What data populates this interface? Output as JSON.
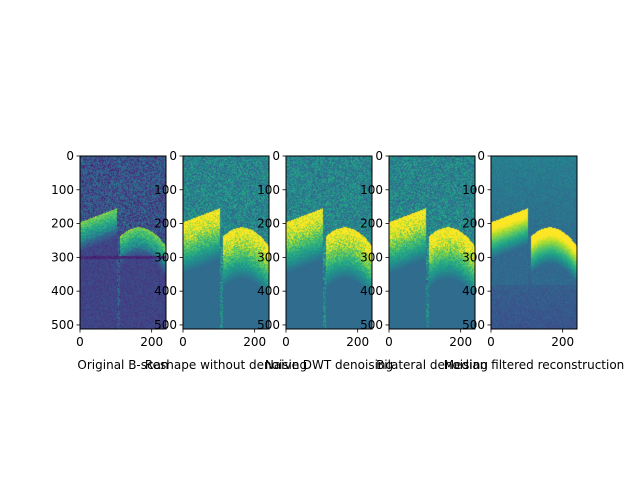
{
  "figure": {
    "background": "#ffffff",
    "panels": [
      {
        "id": "original",
        "title": "Original B-scan",
        "variant": "original",
        "xticks": [
          "0",
          "200"
        ],
        "yticks": [
          "0",
          "100",
          "200",
          "300",
          "400",
          "500"
        ]
      },
      {
        "id": "reshape",
        "title": "Reshape without denoising",
        "variant": "reshape",
        "xticks": [
          "0",
          "200"
        ],
        "yticks": [
          "0",
          "100",
          "200",
          "300",
          "400",
          "500"
        ]
      },
      {
        "id": "naive",
        "title": "Naive DWT denoising",
        "variant": "naive",
        "xticks": [
          "0",
          "200"
        ],
        "yticks": [
          "0",
          "100",
          "200",
          "300",
          "400",
          "500"
        ]
      },
      {
        "id": "bilateral",
        "title": "Bilateral denoising",
        "variant": "bilateral",
        "xticks": [
          "0",
          "200"
        ],
        "yticks": [
          "0",
          "100",
          "200",
          "300",
          "400",
          "500"
        ]
      },
      {
        "id": "median",
        "title": "Median filtered reconstruction",
        "variant": "median",
        "xticks": [
          "0",
          "200"
        ],
        "yticks": [
          "0",
          "100",
          "200",
          "300",
          "400",
          "500"
        ]
      }
    ]
  },
  "chart_data": [
    {
      "type": "heatmap",
      "title": "Original B-scan",
      "colormap": "viridis",
      "xlim": [
        0,
        240
      ],
      "ylim": [
        512,
        0
      ],
      "xticks": [
        0,
        200
      ],
      "yticks": [
        0,
        100,
        200,
        300,
        400,
        500
      ]
    },
    {
      "type": "heatmap",
      "title": "Reshape without denoising",
      "colormap": "viridis",
      "xlim": [
        0,
        240
      ],
      "ylim": [
        512,
        0
      ],
      "xticks": [
        0,
        200
      ],
      "yticks": [
        0,
        100,
        200,
        300,
        400,
        500
      ]
    },
    {
      "type": "heatmap",
      "title": "Naive DWT denoising",
      "colormap": "viridis",
      "xlim": [
        0,
        240
      ],
      "ylim": [
        512,
        0
      ],
      "xticks": [
        0,
        200
      ],
      "yticks": [
        0,
        100,
        200,
        300,
        400,
        500
      ]
    },
    {
      "type": "heatmap",
      "title": "Bilateral denoising",
      "colormap": "viridis",
      "xlim": [
        0,
        240
      ],
      "ylim": [
        512,
        0
      ],
      "xticks": [
        0,
        200
      ],
      "yticks": [
        0,
        100,
        200,
        300,
        400,
        500
      ]
    },
    {
      "type": "heatmap",
      "title": "Median filtered reconstruction",
      "colormap": "viridis",
      "xlim": [
        0,
        240
      ],
      "ylim": [
        512,
        0
      ],
      "xticks": [
        0,
        200
      ],
      "yticks": [
        0,
        100,
        200,
        300,
        400,
        500
      ]
    }
  ]
}
